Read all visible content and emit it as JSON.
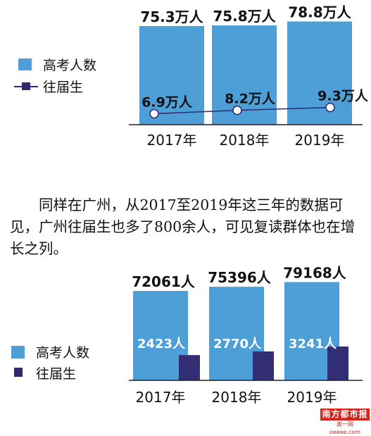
{
  "paragraph": "同样在广州，从2017至2019年这三年的数据可见，广州往届生也多了800余人，可见复读群体也在增长之列。",
  "colors": {
    "bar": "#4e9fd8",
    "repeat": "#2f2a6e",
    "axis": "#222222"
  },
  "chart_data": [
    {
      "type": "bar",
      "categories": [
        "2017年",
        "2018年",
        "2019年"
      ],
      "legend": [
        "高考人数",
        "往届生"
      ],
      "series": [
        {
          "name": "高考人数",
          "values": [
            75.3,
            75.8,
            78.8
          ],
          "labels": [
            "75.3万人",
            "75.8万人",
            "78.8万人"
          ]
        },
        {
          "name": "往届生",
          "values": [
            6.9,
            8.2,
            9.3
          ],
          "labels": [
            "6.9万人",
            "8.2万人",
            "9.3万人"
          ]
        }
      ],
      "unit": "万人",
      "grid": false
    },
    {
      "type": "bar",
      "categories": [
        "2017年",
        "2018年",
        "2019年"
      ],
      "legend": [
        "高考人数",
        "往届生"
      ],
      "series": [
        {
          "name": "高考人数",
          "values": [
            72061,
            75396,
            79168
          ],
          "labels": [
            "72061人",
            "75396人",
            "79168人"
          ]
        },
        {
          "name": "往届生",
          "values": [
            2423,
            2770,
            3241
          ],
          "labels": [
            "2423人",
            "2770人",
            "3241人"
          ]
        }
      ],
      "unit": "人",
      "grid": false
    }
  ],
  "logo": {
    "main": "南方都市报",
    "sub": "奥一网 oeeee.com"
  }
}
